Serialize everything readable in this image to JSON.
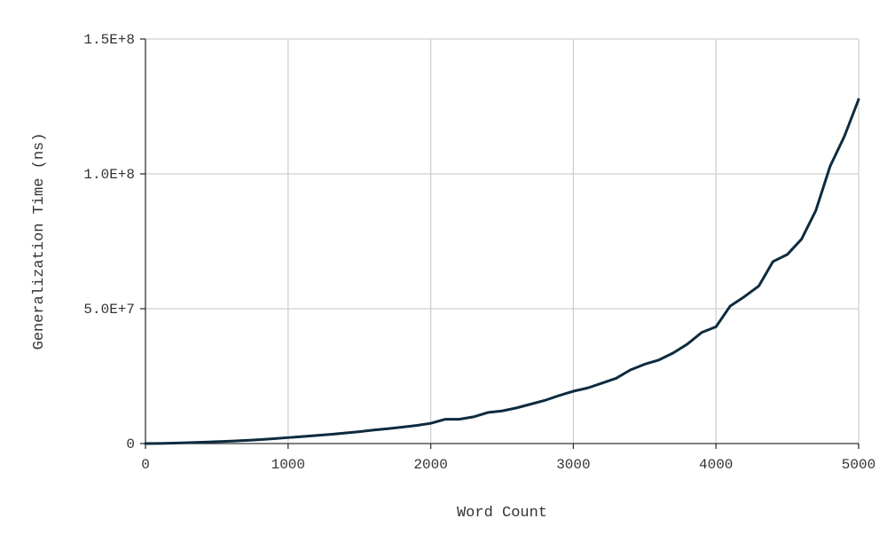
{
  "chart_data": {
    "type": "line",
    "xlabel": "Word Count",
    "ylabel": "Generalization Time (ns)",
    "xlim": [
      0,
      5000
    ],
    "ylim": [
      0,
      150000000
    ],
    "x_ticks": [
      {
        "value": 0,
        "label": "0"
      },
      {
        "value": 1000,
        "label": "1000"
      },
      {
        "value": 2000,
        "label": "2000"
      },
      {
        "value": 3000,
        "label": "3000"
      },
      {
        "value": 4000,
        "label": "4000"
      },
      {
        "value": 5000,
        "label": "5000"
      }
    ],
    "y_ticks": [
      {
        "value": 0,
        "label": "0"
      },
      {
        "value": 50000000,
        "label": "5.0E+7"
      },
      {
        "value": 100000000,
        "label": "1.0E+8"
      },
      {
        "value": 150000000,
        "label": "1.5E+8"
      }
    ],
    "grid": true,
    "legend": "none",
    "series": [
      {
        "color": "#0d2b3e",
        "x": [
          0,
          100,
          200,
          300,
          400,
          500,
          600,
          700,
          800,
          900,
          1000,
          1100,
          1200,
          1300,
          1400,
          1500,
          1600,
          1700,
          1800,
          1900,
          2000,
          2100,
          2200,
          2300,
          2400,
          2500,
          2600,
          2700,
          2800,
          2900,
          3000,
          3100,
          3200,
          3300,
          3400,
          3500,
          3600,
          3700,
          3800,
          3900,
          4000,
          4100,
          4200,
          4300,
          4400,
          4500,
          4600,
          4700,
          4800,
          4900,
          5000
        ],
        "values": [
          0,
          60000,
          180000,
          330000,
          500000,
          700000,
          900000,
          1150000,
          1450000,
          1800000,
          2200000,
          2600000,
          3000000,
          3400000,
          3900000,
          4400000,
          5000000,
          5500000,
          6100000,
          6700000,
          7500000,
          9000000,
          9000000,
          9900000,
          11500000,
          12100000,
          13200000,
          14600000,
          16000000,
          17800000,
          19400000,
          20600000,
          22400000,
          24200000,
          27300000,
          29400000,
          31000000,
          33600000,
          36900000,
          41200000,
          43300000,
          51000000,
          54500000,
          58400000,
          67500000,
          70100000,
          75800000,
          86400000,
          102800000,
          113900000,
          127600000
        ]
      }
    ]
  }
}
